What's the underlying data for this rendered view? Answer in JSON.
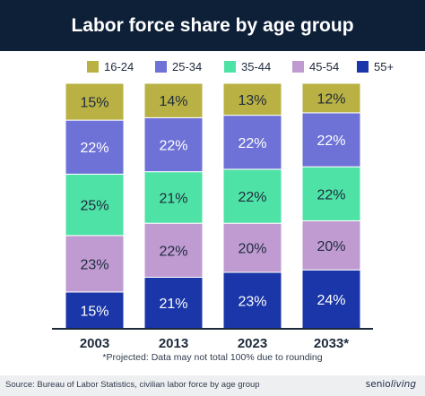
{
  "title": "Labor force share by age group",
  "footnote": "*Projected: Data may not total 100% due to rounding",
  "source": "Source: Bureau of Labor Statistics, civilian labor force by age group",
  "logo_text": "seniorliving",
  "colors": {
    "header_bg": "#0e2038",
    "16-24": "#b9b143",
    "25-34": "#6e72d6",
    "35-44": "#4fe2a6",
    "45-54": "#c09bd2",
    "55+": "#1a36a8"
  },
  "chart_data": {
    "type": "bar",
    "stacked": true,
    "orientation": "vertical",
    "categories": [
      "2003",
      "2013",
      "2023",
      "2033*"
    ],
    "series": [
      {
        "name": "16-24",
        "values": [
          15,
          14,
          13,
          12
        ],
        "labels": [
          "15%",
          "14%",
          "13%",
          "12%"
        ]
      },
      {
        "name": "25-34",
        "values": [
          22,
          22,
          22,
          22
        ],
        "labels": [
          "22%",
          "22%",
          "22%",
          "22%"
        ]
      },
      {
        "name": "35-44",
        "values": [
          25,
          21,
          22,
          22
        ],
        "labels": [
          "25%",
          "21%",
          "22%",
          "22%"
        ]
      },
      {
        "name": "45-54",
        "values": [
          23,
          22,
          20,
          20
        ],
        "labels": [
          "23%",
          "22%",
          "20%",
          "20%"
        ]
      },
      {
        "name": "55+",
        "values": [
          15,
          21,
          23,
          24
        ],
        "labels": [
          "15%",
          "21%",
          "23%",
          "24%"
        ]
      }
    ],
    "legend_position": "top",
    "grid": false
  }
}
